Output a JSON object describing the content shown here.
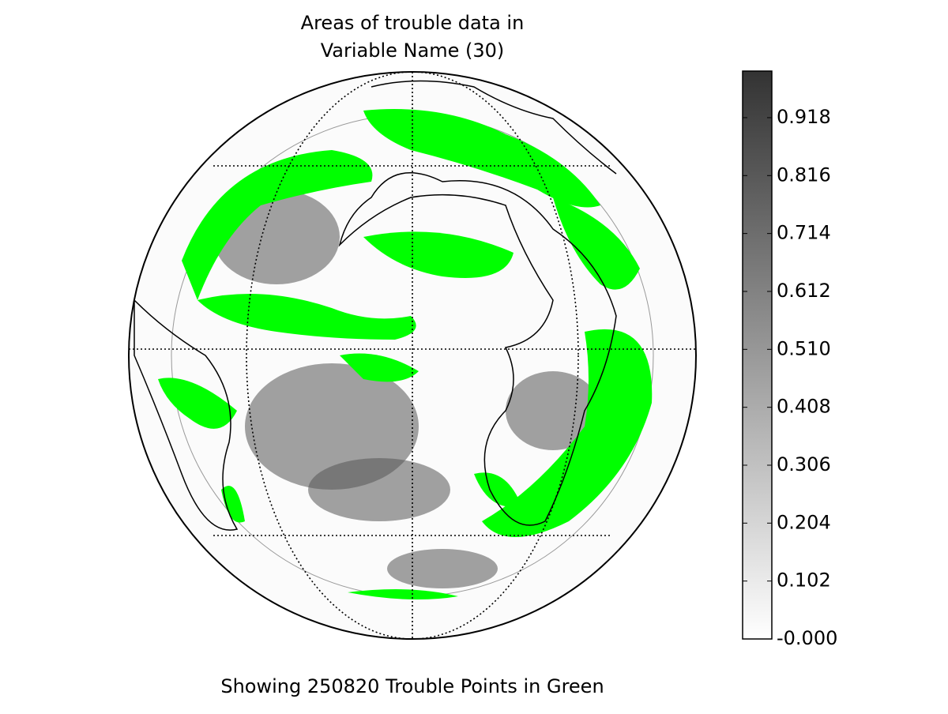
{
  "chart_data": {
    "type": "map",
    "title_lines": [
      "Areas of trouble data in",
      "Variable Name (30)"
    ],
    "caption": "Showing 250820 Trouble Points in Green",
    "colorbar": {
      "clim": [
        0,
        1.0
      ],
      "colors": [
        "#ffffff",
        "#333333"
      ],
      "ticks": [
        {
          "value": 0,
          "label": "-0.000"
        },
        0.102,
        0.204,
        0.306,
        0.408,
        {
          "value": 0.51,
          "label": "0.510"
        },
        0.612,
        0.714,
        0.816,
        0.918
      ]
    },
    "highlight_color": "#00ff00"
  }
}
